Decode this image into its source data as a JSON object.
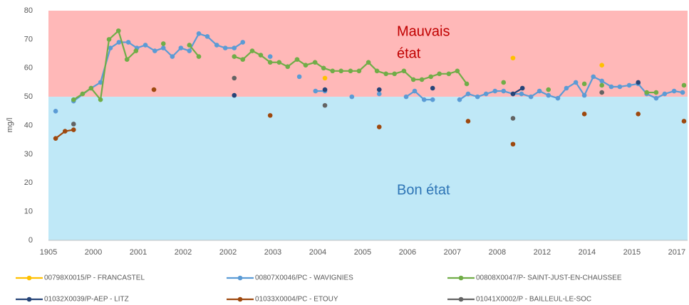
{
  "chart_data": {
    "type": "line",
    "y_label": "mg/l",
    "ylim": [
      0,
      80
    ],
    "yticks": [
      0,
      10,
      20,
      30,
      40,
      50,
      60,
      70,
      80
    ],
    "xlim": [
      0,
      14.24
    ],
    "xticks": [
      {
        "value": 0,
        "label": "1905"
      },
      {
        "value": 1,
        "label": "2000"
      },
      {
        "value": 2,
        "label": "2001"
      },
      {
        "value": 3,
        "label": "2002"
      },
      {
        "value": 4,
        "label": "2002"
      },
      {
        "value": 5,
        "label": "2003"
      },
      {
        "value": 6,
        "label": "2004"
      },
      {
        "value": 7,
        "label": "2005"
      },
      {
        "value": 8,
        "label": "2006"
      },
      {
        "value": 9,
        "label": "2007"
      },
      {
        "value": 10,
        "label": "2008"
      },
      {
        "value": 11,
        "label": "2012"
      },
      {
        "value": 12,
        "label": "2014"
      },
      {
        "value": 13,
        "label": "2015"
      },
      {
        "value": 14,
        "label": "2017"
      }
    ],
    "grid": false,
    "zones": [
      {
        "from": 50,
        "to": 80,
        "color": "#ffb8b8",
        "label": [
          "Mauvais",
          "état"
        ],
        "label_color": "#c00000"
      },
      {
        "from": 0,
        "to": 50,
        "color": "#bfe8f7",
        "label": [
          "Bon état"
        ],
        "label_color": "#2e75b6"
      }
    ],
    "series": [
      {
        "name": "00798X0015/P - FRANCASTEL",
        "color": "#ffc000",
        "x": [
          6.16,
          null,
          10.35,
          null,
          12.33
        ],
        "values": [
          56.5,
          null,
          63.5,
          null,
          61
        ]
      },
      {
        "name": "00807X0046/PC - WAVIGNIES",
        "color": "#5b9bd5",
        "x": [
          0.16,
          null,
          0.56,
          0.95,
          1.16,
          1.38,
          1.57,
          1.78,
          1.97,
          2.16,
          2.37,
          2.56,
          2.76,
          2.95,
          3.14,
          3.35,
          3.54,
          3.75,
          3.94,
          4.14,
          4.33,
          null,
          4.94,
          null,
          5.59,
          null,
          5.95,
          6.16,
          null,
          6.76,
          null,
          7.37,
          null,
          7.97,
          8.16,
          8.37,
          8.56,
          null,
          9.16,
          9.35,
          9.56,
          9.75,
          9.95,
          10.14,
          10.35,
          10.54,
          10.75,
          10.94,
          11.14,
          11.35,
          11.54,
          11.75,
          11.94,
          12.14,
          12.33,
          12.54,
          12.73,
          12.94,
          13.14,
          13.33,
          13.54,
          13.73,
          13.94,
          14.13
        ],
        "values": [
          45,
          null,
          48.5,
          53,
          55,
          67,
          69,
          69,
          67,
          68,
          66,
          67,
          64,
          67,
          66,
          72,
          71,
          68,
          67,
          67,
          69,
          null,
          64,
          null,
          57,
          null,
          52,
          52,
          null,
          50,
          null,
          51,
          null,
          50,
          52,
          49,
          49,
          null,
          49,
          51,
          50,
          51,
          52,
          52,
          51,
          51,
          50,
          52,
          50.5,
          49.5,
          53,
          55,
          50.5,
          57,
          55.5,
          53.5,
          53.5,
          54,
          54.5,
          51,
          49.5,
          51,
          52,
          51.5
        ]
      },
      {
        "name": "00808X0047/P- SAINT-JUST-EN-CHAUSSEE",
        "color": "#70ad47",
        "x": [
          0.56,
          0.76,
          0.95,
          1.16,
          1.35,
          1.56,
          1.75,
          1.95,
          null,
          2.56,
          null,
          3.14,
          3.35,
          null,
          4.14,
          4.33,
          4.54,
          4.73,
          4.94,
          5.14,
          5.33,
          5.54,
          5.73,
          5.94,
          6.13,
          6.33,
          6.52,
          6.73,
          6.92,
          7.13,
          7.32,
          7.52,
          7.71,
          7.92,
          8.13,
          8.32,
          8.52,
          8.71,
          8.92,
          9.11,
          9.32,
          null,
          10.14,
          null,
          11.14,
          null,
          11.94,
          null,
          12.33,
          null,
          13.33,
          13.54,
          null,
          14.16
        ],
        "values": [
          49,
          51,
          53,
          49,
          70,
          73,
          63,
          66,
          null,
          68.5,
          null,
          68,
          64,
          null,
          64,
          63,
          66,
          64.5,
          62,
          62,
          60.5,
          63,
          61,
          62,
          60,
          59,
          59,
          59,
          59,
          62,
          59,
          58,
          58,
          59,
          56,
          56,
          57,
          58,
          58,
          59,
          54.5,
          null,
          55,
          null,
          52.5,
          null,
          54.5,
          null,
          54,
          null,
          51.5,
          51.5,
          null,
          54
        ]
      },
      {
        "name": "01032X0039/P-AEP - LITZ",
        "color": "#264478",
        "x": [
          4.14,
          null,
          6.16,
          null,
          7.37,
          null,
          8.56,
          null,
          10.35,
          10.56,
          null,
          13.14
        ],
        "values": [
          50.5,
          null,
          52.5,
          null,
          52.5,
          null,
          53,
          null,
          51,
          53,
          null,
          55
        ]
      },
      {
        "name": "01033X0004/PC - ETOUY",
        "color": "#9e480e",
        "x": [
          0.16,
          0.37,
          0.56,
          null,
          2.35,
          null,
          4.94,
          null,
          7.37,
          null,
          9.35,
          null,
          10.35,
          null,
          11.94,
          null,
          13.14,
          null,
          14.16
        ],
        "values": [
          35.5,
          38,
          38.5,
          null,
          52.5,
          null,
          43.5,
          null,
          39.5,
          null,
          41.5,
          null,
          33.5,
          null,
          44,
          null,
          44,
          null,
          41.5
        ]
      },
      {
        "name": "01041X0002/P - BAILLEUL-LE-SOC",
        "color": "#636363",
        "x": [
          0.56,
          null,
          4.14,
          null,
          6.16,
          null,
          10.35,
          null,
          12.33
        ],
        "values": [
          40.5,
          null,
          56.5,
          null,
          47,
          null,
          42.5,
          null,
          51.5
        ]
      }
    ]
  }
}
